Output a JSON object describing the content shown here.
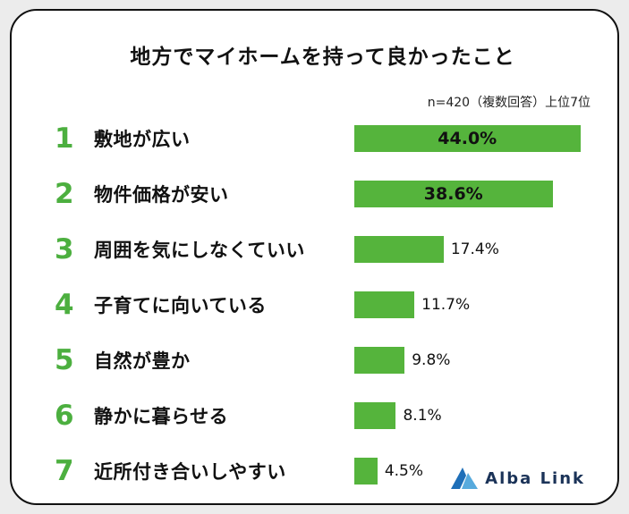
{
  "page": {
    "title": "地方でマイホームを持って良かったこと",
    "note": "n=420（複数回答）上位7位"
  },
  "chart_data": {
    "type": "bar",
    "orientation": "horizontal",
    "title": "地方でマイホームを持って良かったこと",
    "subtitle": "n=420（複数回答）上位7位",
    "ranks": [
      "1",
      "2",
      "3",
      "4",
      "5",
      "6",
      "7"
    ],
    "categories": [
      "敷地が広い",
      "物件価格が安い",
      "周囲を気にしなくていい",
      "子育てに向いている",
      "自然が豊か",
      "静かに暮らせる",
      "近所付き合いしやすい"
    ],
    "values": [
      44.0,
      38.6,
      17.4,
      11.7,
      9.8,
      8.1,
      4.5
    ],
    "value_labels": [
      "44.0%",
      "38.6%",
      "17.4%",
      "11.7%",
      "9.8%",
      "8.1%",
      "4.5%"
    ],
    "xlim": [
      0,
      46
    ],
    "bar_color": "#55b43c",
    "rank_color": "#4caf3f",
    "legend": "none",
    "grid": false
  },
  "branding": {
    "logo_text": "Alba Link",
    "logo_color_dark": "#1f6fb8",
    "logo_color_light": "#57aadd"
  }
}
